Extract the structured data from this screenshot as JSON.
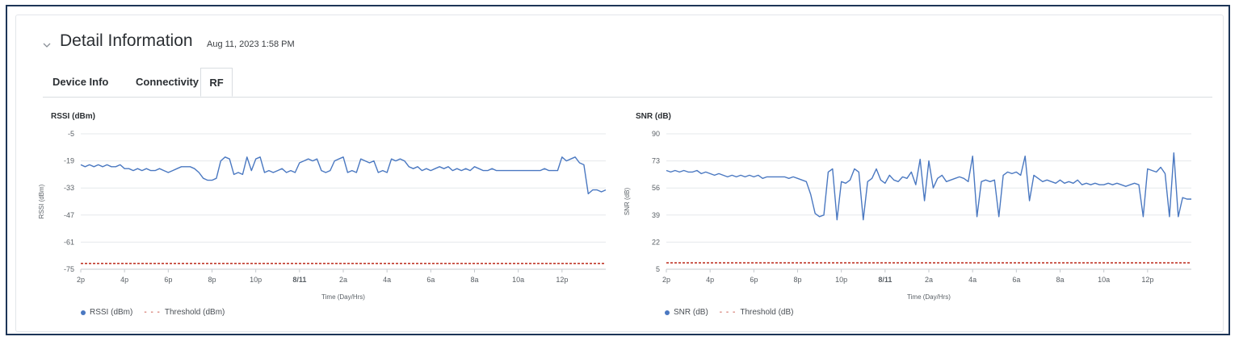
{
  "header": {
    "title": "Detail Information",
    "timestamp": "Aug 11, 2023 1:58 PM"
  },
  "tabs": [
    {
      "label": "Device Info",
      "active": false
    },
    {
      "label": "Connectivity",
      "active": false
    },
    {
      "label": "RF",
      "active": true
    }
  ],
  "colors": {
    "series": "#4a78c1",
    "threshold": "#c0392b",
    "grid": "#e6e8eb",
    "axis": "#5a6066"
  },
  "icons": {
    "collapse": "chevron-down-icon"
  },
  "chart_data": [
    {
      "type": "line",
      "title": "RSSI (dBm)",
      "ylabel": "RSSI (dBm)",
      "xlabel": "Time (Day/Hrs)",
      "y_ticks": [
        "-5",
        "-19",
        "-33",
        "-47",
        "-61",
        "-75"
      ],
      "ylim": [
        -75,
        -5
      ],
      "x_ticks": [
        "2p",
        "4p",
        "6p",
        "8p",
        "10p",
        "8/11",
        "2a",
        "4a",
        "6a",
        "8a",
        "10a",
        "12p"
      ],
      "x_bold_tick": "8/11",
      "xlim_hours": [
        0,
        24
      ],
      "grid": true,
      "legend_position": "bottom-left",
      "series": [
        {
          "name": "RSSI (dBm)",
          "x": [
            0,
            0.2,
            0.4,
            0.6,
            0.8,
            1.0,
            1.2,
            1.4,
            1.6,
            1.8,
            2.0,
            2.2,
            2.4,
            2.6,
            2.8,
            3.0,
            3.2,
            3.4,
            3.6,
            3.8,
            4.0,
            4.2,
            4.4,
            4.6,
            4.8,
            5.0,
            5.2,
            5.4,
            5.6,
            5.8,
            6.0,
            6.2,
            6.4,
            6.6,
            6.8,
            7.0,
            7.2,
            7.4,
            7.6,
            7.8,
            8.0,
            8.2,
            8.4,
            8.6,
            8.8,
            9.0,
            9.2,
            9.4,
            9.6,
            9.8,
            10.0,
            10.2,
            10.4,
            10.6,
            10.8,
            11.0,
            11.2,
            11.4,
            11.6,
            11.8,
            12.0,
            12.2,
            12.4,
            12.6,
            12.8,
            13.0,
            13.2,
            13.4,
            13.6,
            13.8,
            14.0,
            14.2,
            14.4,
            14.6,
            14.8,
            15.0,
            15.2,
            15.4,
            15.6,
            15.8,
            16.0,
            16.2,
            16.4,
            16.6,
            16.8,
            17.0,
            17.2,
            17.4,
            17.6,
            17.8,
            18.0,
            18.2,
            18.4,
            18.6,
            18.8,
            19.0,
            19.2,
            19.4,
            19.6,
            19.8,
            20.0,
            20.2,
            20.4,
            20.6,
            20.8,
            21.0,
            21.2,
            21.4,
            21.6,
            21.8,
            22.0,
            22.2,
            22.4,
            22.6,
            22.8,
            23.0,
            23.2,
            23.4,
            23.6,
            23.8,
            24.0
          ],
          "values": [
            -21,
            -22,
            -21,
            -22,
            -21,
            -22,
            -21,
            -22,
            -22,
            -21,
            -23,
            -23,
            -24,
            -23,
            -24,
            -23,
            -24,
            -24,
            -23,
            -24,
            -25,
            -24,
            -23,
            -22,
            -22,
            -22,
            -23,
            -25,
            -28,
            -29,
            -29,
            -28,
            -19,
            -17,
            -18,
            -26,
            -25,
            -26,
            -17,
            -24,
            -18,
            -17,
            -25,
            -24,
            -25,
            -24,
            -23,
            -25,
            -24,
            -25,
            -20,
            -19,
            -18,
            -19,
            -18,
            -24,
            -25,
            -24,
            -19,
            -18,
            -17,
            -25,
            -24,
            -25,
            -18,
            -19,
            -20,
            -19,
            -25,
            -24,
            -25,
            -18,
            -19,
            -18,
            -19,
            -22,
            -23,
            -22,
            -24,
            -23,
            -24,
            -23,
            -22,
            -23,
            -22,
            -24,
            -23,
            -24,
            -23,
            -24,
            -22,
            -23,
            -24,
            -24,
            -23,
            -24,
            -24,
            -24,
            -24,
            -24,
            -24,
            -24,
            -24,
            -24,
            -24,
            -24,
            -23,
            -24,
            -24,
            -24,
            -17,
            -19,
            -18,
            -17,
            -20,
            -21,
            -36,
            -34,
            -34,
            -35,
            -34
          ]
        },
        {
          "name": "Threshold (dBm)",
          "values": [
            -72,
            -72
          ]
        }
      ]
    },
    {
      "type": "line",
      "title": "SNR (dB)",
      "ylabel": "SNR (dB)",
      "xlabel": "Time (Day/Hrs)",
      "y_ticks": [
        "90",
        "73",
        "56",
        "39",
        "22",
        "5"
      ],
      "ylim": [
        5,
        90
      ],
      "x_ticks": [
        "2p",
        "4p",
        "6p",
        "8p",
        "10p",
        "8/11",
        "2a",
        "4a",
        "6a",
        "8a",
        "10a",
        "12p"
      ],
      "x_bold_tick": "8/11",
      "xlim_hours": [
        0,
        24
      ],
      "grid": true,
      "legend_position": "bottom-left",
      "series": [
        {
          "name": "SNR (dB)",
          "x": [
            0,
            0.2,
            0.4,
            0.6,
            0.8,
            1.0,
            1.2,
            1.4,
            1.6,
            1.8,
            2.0,
            2.2,
            2.4,
            2.6,
            2.8,
            3.0,
            3.2,
            3.4,
            3.6,
            3.8,
            4.0,
            4.2,
            4.4,
            4.6,
            4.8,
            5.0,
            5.2,
            5.4,
            5.6,
            5.8,
            6.0,
            6.2,
            6.4,
            6.6,
            6.8,
            7.0,
            7.2,
            7.4,
            7.6,
            7.8,
            8.0,
            8.2,
            8.4,
            8.6,
            8.8,
            9.0,
            9.2,
            9.4,
            9.6,
            9.8,
            10.0,
            10.2,
            10.4,
            10.6,
            10.8,
            11.0,
            11.2,
            11.4,
            11.6,
            11.8,
            12.0,
            12.2,
            12.4,
            12.6,
            12.8,
            13.0,
            13.2,
            13.4,
            13.6,
            13.8,
            14.0,
            14.2,
            14.4,
            14.6,
            14.8,
            15.0,
            15.2,
            15.4,
            15.6,
            15.8,
            16.0,
            16.2,
            16.4,
            16.6,
            16.8,
            17.0,
            17.2,
            17.4,
            17.6,
            17.8,
            18.0,
            18.2,
            18.4,
            18.6,
            18.8,
            19.0,
            19.2,
            19.4,
            19.6,
            19.8,
            20.0,
            20.2,
            20.4,
            20.6,
            20.8,
            21.0,
            21.2,
            21.4,
            21.6,
            21.8,
            22.0,
            22.2,
            22.4,
            22.6,
            22.8,
            23.0,
            23.2,
            23.4,
            23.6,
            23.8,
            24.0
          ],
          "values": [
            67,
            66,
            67,
            66,
            67,
            66,
            66,
            67,
            65,
            66,
            65,
            64,
            65,
            64,
            63,
            64,
            63,
            64,
            63,
            64,
            63,
            64,
            62,
            63,
            63,
            63,
            63,
            63,
            62,
            63,
            62,
            61,
            60,
            52,
            40,
            38,
            39,
            66,
            68,
            36,
            60,
            59,
            61,
            68,
            66,
            36,
            60,
            62,
            68,
            61,
            59,
            64,
            61,
            60,
            63,
            62,
            66,
            58,
            74,
            48,
            73,
            56,
            62,
            64,
            60,
            61,
            62,
            63,
            62,
            60,
            76,
            38,
            60,
            61,
            60,
            61,
            38,
            64,
            66,
            65,
            66,
            64,
            76,
            48,
            64,
            62,
            60,
            61,
            60,
            59,
            61,
            59,
            60,
            59,
            61,
            58,
            59,
            58,
            59,
            58,
            58,
            59,
            58,
            59,
            58,
            57,
            58,
            59,
            58,
            38,
            68,
            67,
            66,
            69,
            65,
            38,
            78,
            38,
            50,
            49,
            49
          ]
        },
        {
          "name": "Threshold (dB)",
          "values": [
            9,
            9
          ]
        }
      ]
    }
  ]
}
